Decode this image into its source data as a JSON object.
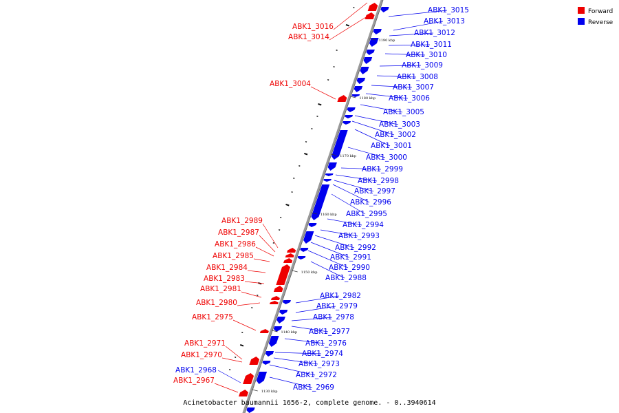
{
  "caption": "Acinetobacter baumannii 1656-2, complete genome. - 0..3940614",
  "legend": [
    {
      "label": "Forward",
      "color": "#ee0000"
    },
    {
      "label": "Reverse",
      "color": "#0000ee"
    }
  ],
  "axis_color": "#999999",
  "ticks": [
    "1190 kbp",
    "1180 kbp",
    "1170 kbp",
    "1160 kbp",
    "1150 kbp",
    "1140 kbp",
    "1130 kbp"
  ],
  "forward_genes": [
    "ABK1_3016",
    "ABK1_3014",
    "ABK1_3004",
    "ABK1_2989",
    "ABK1_2987",
    "ABK1_2986",
    "ABK1_2985",
    "ABK1_2984",
    "ABK1_2983",
    "ABK1_2981",
    "ABK1_2980",
    "ABK1_2975",
    "ABK1_2971",
    "ABK1_2970",
    "ABK1_2967"
  ],
  "reverse_genes": [
    "ABK1_3015",
    "ABK1_3013",
    "ABK1_3012",
    "ABK1_3011",
    "ABK1_3010",
    "ABK1_3009",
    "ABK1_3008",
    "ABK1_3007",
    "ABK1_3006",
    "ABK1_3005",
    "ABK1_3003",
    "ABK1_3002",
    "ABK1_3001",
    "ABK1_3000",
    "ABK1_2999",
    "ABK1_2998",
    "ABK1_2997",
    "ABK1_2996",
    "ABK1_2995",
    "ABK1_2994",
    "ABK1_2993",
    "ABK1_2992",
    "ABK1_2991",
    "ABK1_2990",
    "ABK1_2988",
    "ABK1_2982",
    "ABK1_2979",
    "ABK1_2978",
    "ABK1_2977",
    "ABK1_2976",
    "ABK1_2974",
    "ABK1_2973",
    "ABK1_2972",
    "ABK1_2969",
    "ABK1_2968"
  ]
}
